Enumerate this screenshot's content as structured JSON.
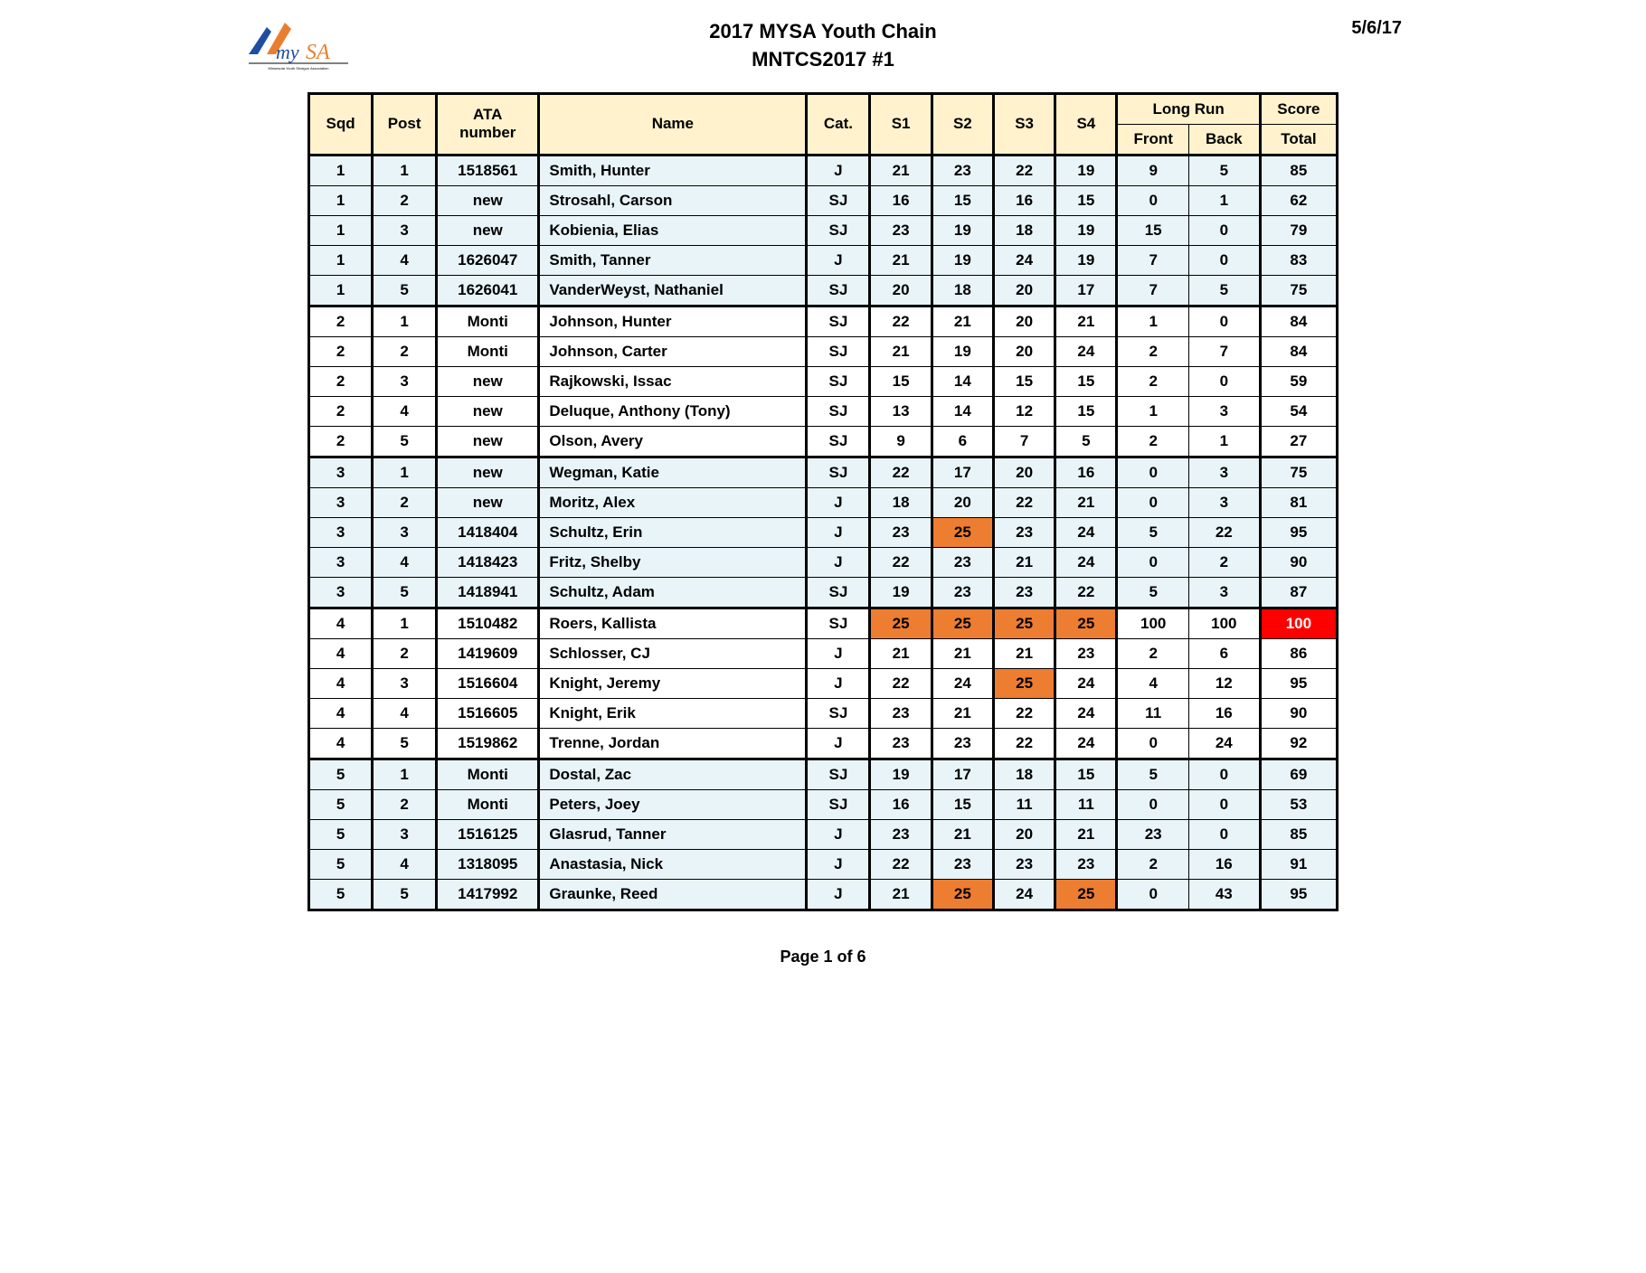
{
  "header": {
    "title_line1": "2017 MYSA Youth Chain",
    "title_line2": "MNTCS2017 #1",
    "date": "5/6/17",
    "page_label": "Page 1 of 6"
  },
  "columns": {
    "sqd": "Sqd",
    "post": "Post",
    "ata": "ATA number",
    "name": "Name",
    "cat": "Cat.",
    "s1": "S1",
    "s2": "S2",
    "s3": "S3",
    "s4": "S4",
    "longrun": "Long Run",
    "front": "Front",
    "back": "Back",
    "score": "Score",
    "total": "Total"
  },
  "highlight_colors": {
    "orange": "#ed7d31",
    "red": "#ff0000",
    "header_bg": "#fff2cc",
    "band_a": "#e8f4f8",
    "band_b": "#ffffff"
  },
  "rows": [
    {
      "sqd": "1",
      "post": "1",
      "ata": "1518561",
      "name": "Smith, Hunter",
      "cat": "J",
      "s1": "21",
      "s2": "23",
      "s3": "22",
      "s4": "19",
      "front": "9",
      "back": "5",
      "total": "85",
      "hl": {}
    },
    {
      "sqd": "1",
      "post": "2",
      "ata": "new",
      "name": "Strosahl, Carson",
      "cat": "SJ",
      "s1": "16",
      "s2": "15",
      "s3": "16",
      "s4": "15",
      "front": "0",
      "back": "1",
      "total": "62",
      "hl": {}
    },
    {
      "sqd": "1",
      "post": "3",
      "ata": "new",
      "name": "Kobienia, Elias",
      "cat": "SJ",
      "s1": "23",
      "s2": "19",
      "s3": "18",
      "s4": "19",
      "front": "15",
      "back": "0",
      "total": "79",
      "hl": {}
    },
    {
      "sqd": "1",
      "post": "4",
      "ata": "1626047",
      "name": "Smith, Tanner",
      "cat": "J",
      "s1": "21",
      "s2": "19",
      "s3": "24",
      "s4": "19",
      "front": "7",
      "back": "0",
      "total": "83",
      "hl": {}
    },
    {
      "sqd": "1",
      "post": "5",
      "ata": "1626041",
      "name": "VanderWeyst, Nathaniel",
      "cat": "SJ",
      "s1": "20",
      "s2": "18",
      "s3": "20",
      "s4": "17",
      "front": "7",
      "back": "5",
      "total": "75",
      "hl": {}
    },
    {
      "sqd": "2",
      "post": "1",
      "ata": "Monti",
      "name": "Johnson, Hunter",
      "cat": "SJ",
      "s1": "22",
      "s2": "21",
      "s3": "20",
      "s4": "21",
      "front": "1",
      "back": "0",
      "total": "84",
      "hl": {}
    },
    {
      "sqd": "2",
      "post": "2",
      "ata": "Monti",
      "name": "Johnson, Carter",
      "cat": "SJ",
      "s1": "21",
      "s2": "19",
      "s3": "20",
      "s4": "24",
      "front": "2",
      "back": "7",
      "total": "84",
      "hl": {}
    },
    {
      "sqd": "2",
      "post": "3",
      "ata": "new",
      "name": "Rajkowski, Issac",
      "cat": "SJ",
      "s1": "15",
      "s2": "14",
      "s3": "15",
      "s4": "15",
      "front": "2",
      "back": "0",
      "total": "59",
      "hl": {}
    },
    {
      "sqd": "2",
      "post": "4",
      "ata": "new",
      "name": "Deluque, Anthony (Tony)",
      "cat": "SJ",
      "s1": "13",
      "s2": "14",
      "s3": "12",
      "s4": "15",
      "front": "1",
      "back": "3",
      "total": "54",
      "hl": {}
    },
    {
      "sqd": "2",
      "post": "5",
      "ata": "new",
      "name": "Olson, Avery",
      "cat": "SJ",
      "s1": "9",
      "s2": "6",
      "s3": "7",
      "s4": "5",
      "front": "2",
      "back": "1",
      "total": "27",
      "hl": {}
    },
    {
      "sqd": "3",
      "post": "1",
      "ata": "new",
      "name": "Wegman, Katie",
      "cat": "SJ",
      "s1": "22",
      "s2": "17",
      "s3": "20",
      "s4": "16",
      "front": "0",
      "back": "3",
      "total": "75",
      "hl": {}
    },
    {
      "sqd": "3",
      "post": "2",
      "ata": "new",
      "name": "Moritz, Alex",
      "cat": "J",
      "s1": "18",
      "s2": "20",
      "s3": "22",
      "s4": "21",
      "front": "0",
      "back": "3",
      "total": "81",
      "hl": {}
    },
    {
      "sqd": "3",
      "post": "3",
      "ata": "1418404",
      "name": "Schultz, Erin",
      "cat": "J",
      "s1": "23",
      "s2": "25",
      "s3": "23",
      "s4": "24",
      "front": "5",
      "back": "22",
      "total": "95",
      "hl": {
        "s2": "orange"
      }
    },
    {
      "sqd": "3",
      "post": "4",
      "ata": "1418423",
      "name": "Fritz, Shelby",
      "cat": "J",
      "s1": "22",
      "s2": "23",
      "s3": "21",
      "s4": "24",
      "front": "0",
      "back": "2",
      "total": "90",
      "hl": {}
    },
    {
      "sqd": "3",
      "post": "5",
      "ata": "1418941",
      "name": "Schultz, Adam",
      "cat": "SJ",
      "s1": "19",
      "s2": "23",
      "s3": "23",
      "s4": "22",
      "front": "5",
      "back": "3",
      "total": "87",
      "hl": {}
    },
    {
      "sqd": "4",
      "post": "1",
      "ata": "1510482",
      "name": "Roers, Kallista",
      "cat": "SJ",
      "s1": "25",
      "s2": "25",
      "s3": "25",
      "s4": "25",
      "front": "100",
      "back": "100",
      "total": "100",
      "hl": {
        "s1": "orange",
        "s2": "orange",
        "s3": "orange",
        "s4": "orange",
        "total": "red"
      }
    },
    {
      "sqd": "4",
      "post": "2",
      "ata": "1419609",
      "name": "Schlosser, CJ",
      "cat": "J",
      "s1": "21",
      "s2": "21",
      "s3": "21",
      "s4": "23",
      "front": "2",
      "back": "6",
      "total": "86",
      "hl": {}
    },
    {
      "sqd": "4",
      "post": "3",
      "ata": "1516604",
      "name": "Knight, Jeremy",
      "cat": "J",
      "s1": "22",
      "s2": "24",
      "s3": "25",
      "s4": "24",
      "front": "4",
      "back": "12",
      "total": "95",
      "hl": {
        "s3": "orange"
      }
    },
    {
      "sqd": "4",
      "post": "4",
      "ata": "1516605",
      "name": "Knight, Erik",
      "cat": "SJ",
      "s1": "23",
      "s2": "21",
      "s3": "22",
      "s4": "24",
      "front": "11",
      "back": "16",
      "total": "90",
      "hl": {}
    },
    {
      "sqd": "4",
      "post": "5",
      "ata": "1519862",
      "name": "Trenne, Jordan",
      "cat": "J",
      "s1": "23",
      "s2": "23",
      "s3": "22",
      "s4": "24",
      "front": "0",
      "back": "24",
      "total": "92",
      "hl": {}
    },
    {
      "sqd": "5",
      "post": "1",
      "ata": "Monti",
      "name": "Dostal, Zac",
      "cat": "SJ",
      "s1": "19",
      "s2": "17",
      "s3": "18",
      "s4": "15",
      "front": "5",
      "back": "0",
      "total": "69",
      "hl": {}
    },
    {
      "sqd": "5",
      "post": "2",
      "ata": "Monti",
      "name": "Peters, Joey",
      "cat": "SJ",
      "s1": "16",
      "s2": "15",
      "s3": "11",
      "s4": "11",
      "front": "0",
      "back": "0",
      "total": "53",
      "hl": {}
    },
    {
      "sqd": "5",
      "post": "3",
      "ata": "1516125",
      "name": "Glasrud, Tanner",
      "cat": "J",
      "s1": "23",
      "s2": "21",
      "s3": "20",
      "s4": "21",
      "front": "23",
      "back": "0",
      "total": "85",
      "hl": {}
    },
    {
      "sqd": "5",
      "post": "4",
      "ata": "1318095",
      "name": "Anastasia, Nick",
      "cat": "J",
      "s1": "22",
      "s2": "23",
      "s3": "23",
      "s4": "23",
      "front": "2",
      "back": "16",
      "total": "91",
      "hl": {}
    },
    {
      "sqd": "5",
      "post": "5",
      "ata": "1417992",
      "name": "Graunke, Reed",
      "cat": "J",
      "s1": "21",
      "s2": "25",
      "s3": "24",
      "s4": "25",
      "front": "0",
      "back": "43",
      "total": "95",
      "hl": {
        "s2": "orange",
        "s4": "orange"
      }
    }
  ]
}
